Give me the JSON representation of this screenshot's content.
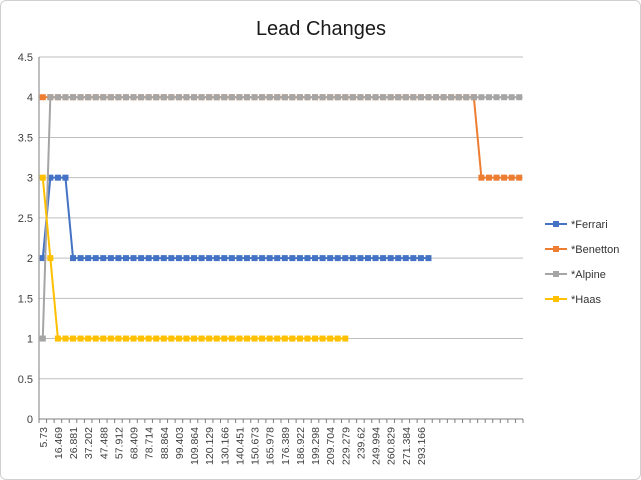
{
  "colors": {
    "grid": "#bfbfbf",
    "axis": "#7f7f7f"
  },
  "chart_data": {
    "type": "line",
    "title": "Lead Changes",
    "xlabel": "",
    "ylabel": "",
    "ylim": [
      0,
      4.5
    ],
    "y_ticks": [
      "0",
      "0.5",
      "1",
      "1.5",
      "2",
      "2.5",
      "3",
      "3.5",
      "4",
      "4.5"
    ],
    "x_tick_labels": [
      "5.73",
      "16.469",
      "26.881",
      "37.202",
      "47.488",
      "57.912",
      "68.409",
      "78.714",
      "88.864",
      "99.403",
      "109.864",
      "120.129",
      "130.166",
      "140.451",
      "150.673",
      "165.978",
      "176.389",
      "186.922",
      "199.298",
      "209.704",
      "229.279",
      "239.62",
      "249.994",
      "260.829",
      "271.384",
      "293.166"
    ],
    "grid": true,
    "legend_position": "right",
    "series": [
      {
        "name": "*Ferrari",
        "color": "#4472c4",
        "values": [
          2,
          3,
          3,
          3,
          2,
          2,
          2,
          2,
          2,
          2,
          2,
          2,
          2,
          2,
          2,
          2,
          2,
          2,
          2,
          2,
          2,
          2,
          2,
          2,
          2,
          2,
          2,
          2,
          2,
          2,
          2,
          2,
          2,
          2,
          2,
          2,
          2,
          2,
          2,
          2,
          2,
          2,
          2,
          2,
          2,
          2,
          2,
          2,
          2,
          2,
          2,
          2
        ]
      },
      {
        "name": "*Benetton",
        "color": "#ed7d31",
        "values": [
          4,
          4,
          4,
          4,
          4,
          4,
          4,
          4,
          4,
          4,
          4,
          4,
          4,
          4,
          4,
          4,
          4,
          4,
          4,
          4,
          4,
          4,
          4,
          4,
          4,
          4,
          4,
          4,
          4,
          4,
          4,
          4,
          4,
          4,
          4,
          4,
          4,
          4,
          4,
          4,
          4,
          4,
          4,
          4,
          4,
          4,
          4,
          4,
          4,
          4,
          4,
          4,
          4,
          4,
          4,
          4,
          4,
          4,
          3,
          3,
          3,
          3,
          3,
          3
        ]
      },
      {
        "name": "*Alpine",
        "color": "#a5a5a5",
        "values": [
          1,
          4,
          4,
          4,
          4,
          4,
          4,
          4,
          4,
          4,
          4,
          4,
          4,
          4,
          4,
          4,
          4,
          4,
          4,
          4,
          4,
          4,
          4,
          4,
          4,
          4,
          4,
          4,
          4,
          4,
          4,
          4,
          4,
          4,
          4,
          4,
          4,
          4,
          4,
          4,
          4,
          4,
          4,
          4,
          4,
          4,
          4,
          4,
          4,
          4,
          4,
          4,
          4,
          4,
          4,
          4,
          4,
          4,
          4,
          4,
          4,
          4,
          4,
          4
        ]
      },
      {
        "name": "*Haas",
        "color": "#ffc000",
        "values": [
          3,
          2,
          1,
          1,
          1,
          1,
          1,
          1,
          1,
          1,
          1,
          1,
          1,
          1,
          1,
          1,
          1,
          1,
          1,
          1,
          1,
          1,
          1,
          1,
          1,
          1,
          1,
          1,
          1,
          1,
          1,
          1,
          1,
          1,
          1,
          1,
          1,
          1,
          1,
          1,
          1
        ]
      }
    ]
  }
}
